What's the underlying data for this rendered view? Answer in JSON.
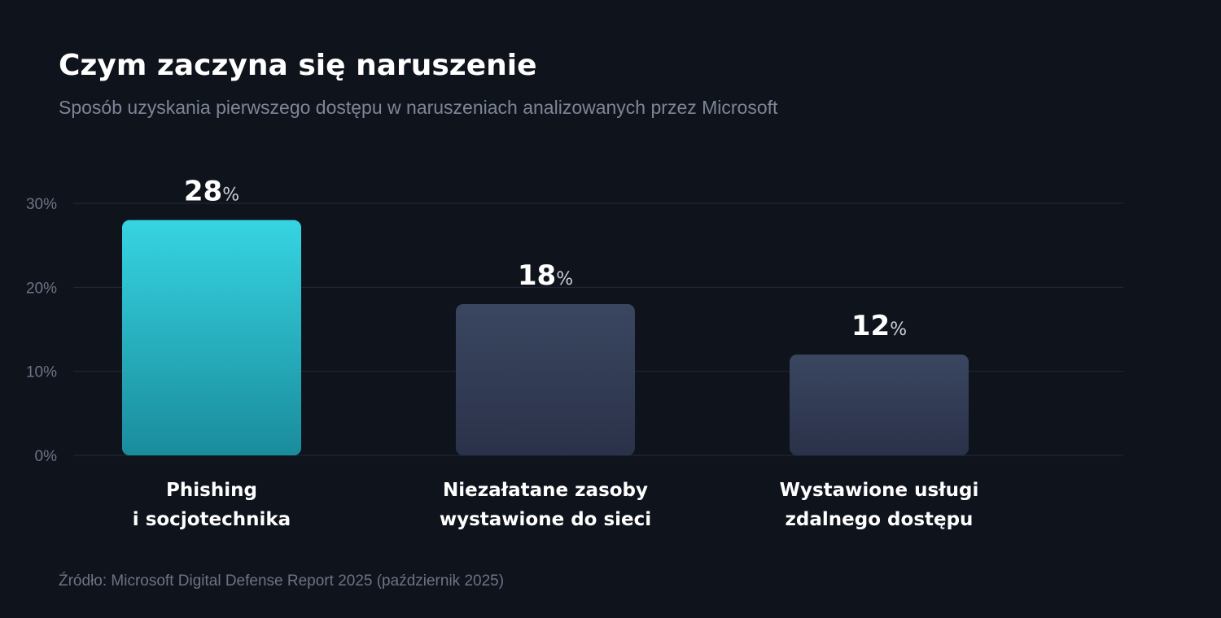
{
  "title": "Czym zaczyna się naruszenie",
  "subtitle": "Sposób uzyskania pierwszego dostępu w naruszeniach analizowanych przez Microsoft",
  "source": "Źródło: Microsoft Digital Defense Report 2025 (październik 2025)",
  "colors": {
    "background": "#0f131c",
    "highlight_top": "#36d4e2",
    "highlight_bottom": "#1a8c9c",
    "muted_top": "#3a4660",
    "muted_bottom": "#2a3249",
    "grid": "#232939",
    "tick_text": "#6c7385"
  },
  "chart_data": {
    "type": "bar",
    "title": "Czym zaczyna się naruszenie",
    "subtitle": "Sposób uzyskania pierwszego dostępu w naruszeniach analizowanych przez Microsoft",
    "categories": [
      [
        "Phishing",
        "i socjotechnika"
      ],
      [
        "Niezałatane zasoby",
        "wystawione do sieci"
      ],
      [
        "Wystawione usługi",
        "zdalnego dostępu"
      ]
    ],
    "values": [
      28,
      18,
      12
    ],
    "value_labels": [
      "28",
      "18",
      "12"
    ],
    "value_unit": "%",
    "highlight_index": 0,
    "ylim": [
      0,
      30
    ],
    "yticks": [
      0,
      10,
      20,
      30
    ],
    "ytick_labels": [
      "0%",
      "10%",
      "20%",
      "30%"
    ],
    "grid": true,
    "legend": "none"
  }
}
